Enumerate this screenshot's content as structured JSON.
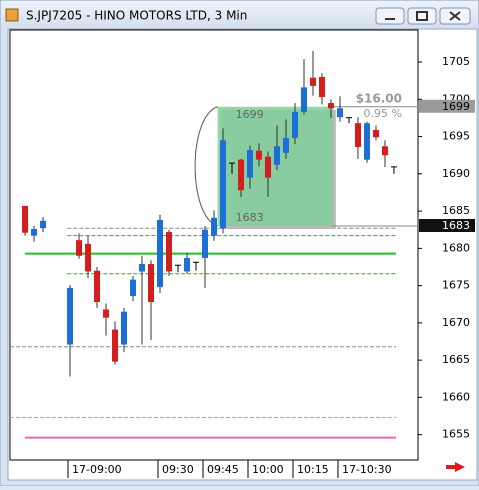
{
  "window": {
    "title": "S.JPJ7205 - HINO MOTORS LTD, 3 Min"
  },
  "chart_data": {
    "type": "candlestick",
    "x": [
      0,
      1,
      2,
      5,
      6,
      7,
      8,
      9,
      10,
      11,
      12,
      13,
      14,
      15,
      16,
      17,
      18,
      19,
      20,
      21,
      22,
      23,
      24,
      25,
      26,
      27,
      28,
      29,
      30,
      31,
      32,
      33,
      34,
      35,
      36,
      37,
      38,
      39,
      40,
      41
    ],
    "open": [
      1685.7,
      1681.7,
      1682.7,
      1667.1,
      1681.1,
      1680.6,
      1677.0,
      1671.8,
      1669.1,
      1667.1,
      1673.6,
      1676.9,
      1677.9,
      1674.8,
      1682.2,
      1677.8,
      1676.9,
      1678.2,
      1678.7,
      1681.7,
      1682.7,
      1691.5,
      1691.9,
      1689.5,
      1693.1,
      1692.3,
      1691.2,
      1692.8,
      1694.8,
      1698.3,
      1702.9,
      1703.0,
      1699.5,
      1697.6,
      1697.6,
      1696.8,
      1691.9,
      1695.9,
      1693.7,
      1691.0
    ],
    "high": [
      1685.7,
      1683.0,
      1684.2,
      1675.1,
      1682.0,
      1681.7,
      1677.5,
      1672.6,
      1670.2,
      1672.0,
      1676.3,
      1679.0,
      1678.4,
      1684.5,
      1682.5,
      1677.8,
      1679.4,
      1678.2,
      1683.0,
      1685.1,
      1696.1,
      1691.5,
      1692.0,
      1693.8,
      1694.1,
      1693.0,
      1696.5,
      1697.3,
      1699.5,
      1705.4,
      1706.5,
      1703.5,
      1700.0,
      1700.4,
      1697.6,
      1697.6,
      1697.0,
      1696.5,
      1694.5,
      1691.0
    ],
    "low": [
      1681.7,
      1680.9,
      1682.2,
      1662.8,
      1678.6,
      1676.0,
      1672.0,
      1668.3,
      1664.4,
      1666.1,
      1672.9,
      1667.1,
      1667.7,
      1674.0,
      1676.3,
      1676.8,
      1676.6,
      1677.0,
      1674.7,
      1681.0,
      1682.0,
      1690.0,
      1686.9,
      1688.0,
      1691.0,
      1686.9,
      1690.5,
      1692.0,
      1694.0,
      1698.0,
      1700.5,
      1699.3,
      1697.5,
      1697.0,
      1696.8,
      1692.0,
      1691.5,
      1694.5,
      1690.9,
      1690.0
    ],
    "close": [
      1682.1,
      1682.6,
      1683.7,
      1674.7,
      1679.0,
      1676.9,
      1672.8,
      1670.7,
      1664.8,
      1671.5,
      1675.8,
      1677.9,
      1672.8,
      1683.8,
      1676.9,
      1677.8,
      1678.7,
      1678.2,
      1682.5,
      1684.1,
      1694.5,
      1691.5,
      1687.8,
      1693.2,
      1691.9,
      1689.5,
      1693.7,
      1694.8,
      1698.3,
      1701.6,
      1701.8,
      1700.3,
      1698.8,
      1698.8,
      1697.6,
      1693.6,
      1696.8,
      1694.9,
      1692.5,
      1691.0
    ],
    "up_color": "#1c6fd6",
    "down_color": "#d41e1e",
    "flat_color": "#000000",
    "xlim": [
      -1.67,
      43.67
    ],
    "xticks": [
      {
        "value": 5,
        "label": "17-09:00"
      },
      {
        "value": 15,
        "label": "09:30"
      },
      {
        "value": 20,
        "label": "09:45"
      },
      {
        "value": 25,
        "label": "10:00"
      },
      {
        "value": 30,
        "label": "10:15"
      },
      {
        "value": 35,
        "label": "17-10:30"
      }
    ],
    "ylim": [
      1651.6,
      1709.3
    ],
    "yticks": [
      1655,
      1660,
      1665,
      1670,
      1675,
      1680,
      1685,
      1690,
      1695,
      1700,
      1705
    ],
    "lines": [
      {
        "value": 1682.7,
        "from": 4.7,
        "color": "#888888",
        "dashed": true
      },
      {
        "value": 1681.7,
        "from": 4.7,
        "color": "#22b022",
        "dashed": true
      },
      {
        "value": 1679.3,
        "from": 0,
        "color": "#22c022",
        "dashed": false
      },
      {
        "value": 1676.6,
        "from": 4.7,
        "color": "#22b022",
        "dashed": true
      },
      {
        "value": 1666.8,
        "from": -1.67,
        "color": "#888888",
        "dashed": true
      },
      {
        "value": 1657.3,
        "from": -1.67,
        "color": "#ee88cc",
        "dashed": true
      },
      {
        "value": 1654.6,
        "from": 0,
        "color": "#ee66bb",
        "dashed": false
      }
    ],
    "measure": {
      "high": 1699,
      "low": 1683,
      "from": 21.4,
      "to": 34.2,
      "change": "$16.00",
      "percent": "0.95 %",
      "color": "#7fcf9a"
    }
  }
}
